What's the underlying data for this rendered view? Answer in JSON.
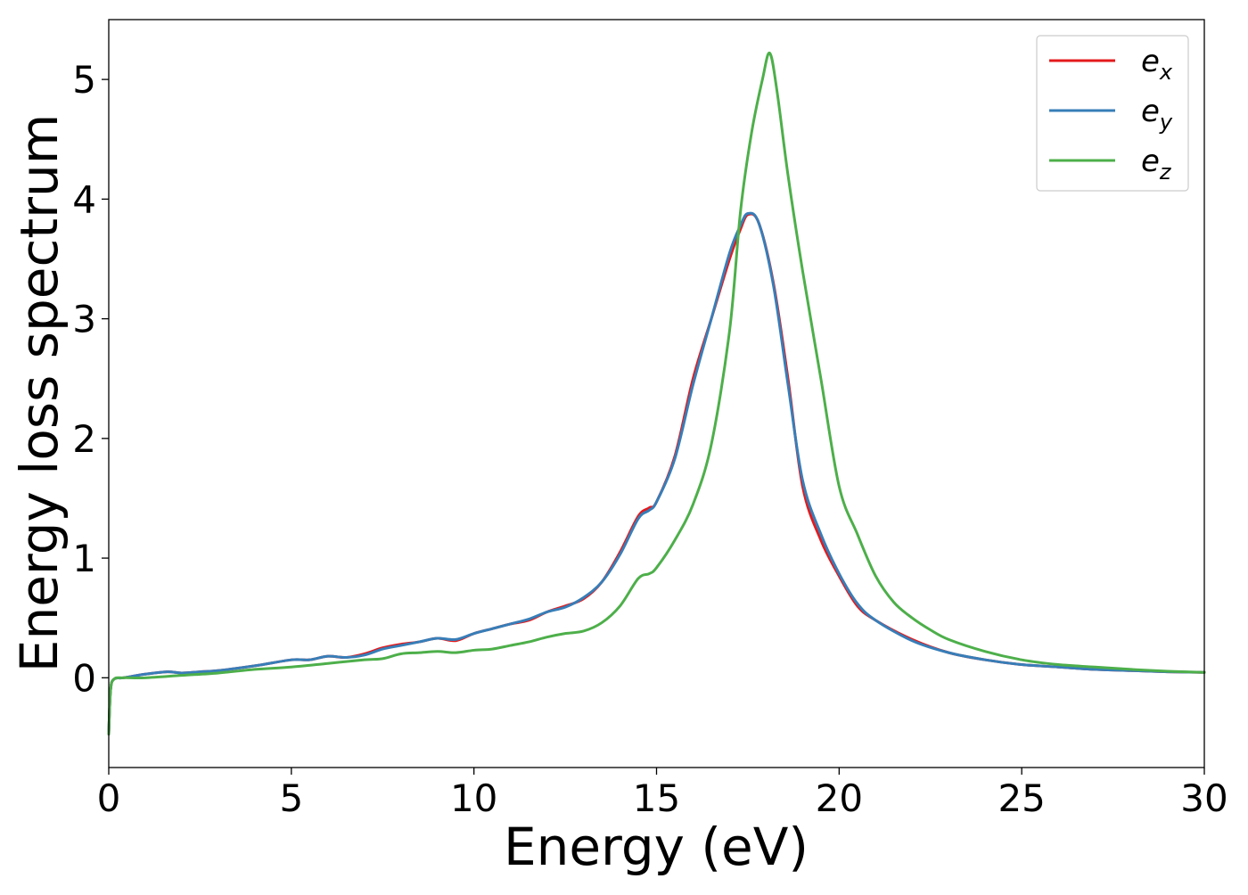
{
  "chart_data": {
    "type": "line",
    "title": "",
    "xlabel": "Energy (eV)",
    "ylabel": "Energy loss spectrum",
    "xlim": [
      0,
      30
    ],
    "ylim": [
      -0.75,
      5.5
    ],
    "xticks": [
      0,
      5,
      10,
      15,
      20,
      25,
      30
    ],
    "yticks": [
      0,
      1,
      2,
      3,
      4,
      5
    ],
    "xtick_labels": [
      "0",
      "5",
      "10",
      "15",
      "20",
      "25",
      "30"
    ],
    "ytick_labels": [
      "0",
      "1",
      "2",
      "3",
      "4",
      "5"
    ],
    "grid": false,
    "legend_position": "top-right",
    "series": [
      {
        "name": "e_x",
        "label_main": "e",
        "label_sub": "x",
        "color": "#e41a1c",
        "x": [
          0,
          0.05,
          0.15,
          0.4,
          1.0,
          1.6,
          2.0,
          2.5,
          3.0,
          4.0,
          5.0,
          5.5,
          6.0,
          6.5,
          7.0,
          7.5,
          8.0,
          8.5,
          9.0,
          9.5,
          10.0,
          10.5,
          11.0,
          11.5,
          12.0,
          12.5,
          13.0,
          13.5,
          14.0,
          14.5,
          14.8,
          15.0,
          15.5,
          16.0,
          16.5,
          17.0,
          17.3,
          17.5,
          17.8,
          18.2,
          18.6,
          19.0,
          19.5,
          20.0,
          20.5,
          21.0,
          22.0,
          23.0,
          24.0,
          25.0,
          26.0,
          27.0,
          28.0,
          29.0,
          30.0
        ],
        "y": [
          -0.47,
          -0.1,
          -0.01,
          0.0,
          0.03,
          0.05,
          0.04,
          0.05,
          0.06,
          0.1,
          0.15,
          0.15,
          0.18,
          0.17,
          0.2,
          0.25,
          0.28,
          0.3,
          0.33,
          0.31,
          0.37,
          0.41,
          0.45,
          0.48,
          0.55,
          0.6,
          0.66,
          0.8,
          1.05,
          1.35,
          1.42,
          1.47,
          1.85,
          2.5,
          3.0,
          3.5,
          3.75,
          3.87,
          3.8,
          3.3,
          2.5,
          1.6,
          1.15,
          0.85,
          0.6,
          0.48,
          0.32,
          0.21,
          0.15,
          0.11,
          0.09,
          0.07,
          0.06,
          0.05,
          0.045
        ]
      },
      {
        "name": "e_y",
        "label_main": "e",
        "label_sub": "y",
        "color": "#377eb8",
        "x": [
          0,
          0.05,
          0.15,
          0.4,
          1.0,
          1.6,
          2.0,
          2.5,
          3.0,
          4.0,
          5.0,
          5.5,
          6.0,
          6.5,
          7.0,
          7.5,
          8.0,
          8.5,
          9.0,
          9.5,
          10.0,
          10.5,
          11.0,
          11.5,
          12.0,
          12.5,
          13.0,
          13.5,
          14.0,
          14.5,
          14.8,
          15.0,
          15.5,
          16.0,
          16.5,
          17.0,
          17.3,
          17.5,
          17.8,
          18.2,
          18.6,
          19.0,
          19.5,
          20.0,
          20.5,
          21.0,
          22.0,
          23.0,
          24.0,
          25.0,
          26.0,
          27.0,
          28.0,
          29.0,
          30.0
        ],
        "y": [
          -0.47,
          -0.1,
          -0.01,
          0.0,
          0.03,
          0.05,
          0.04,
          0.05,
          0.06,
          0.1,
          0.15,
          0.15,
          0.18,
          0.17,
          0.19,
          0.24,
          0.27,
          0.3,
          0.33,
          0.32,
          0.37,
          0.41,
          0.45,
          0.49,
          0.55,
          0.59,
          0.67,
          0.8,
          1.03,
          1.33,
          1.4,
          1.47,
          1.83,
          2.45,
          3.0,
          3.55,
          3.78,
          3.88,
          3.8,
          3.28,
          2.45,
          1.65,
          1.2,
          0.87,
          0.62,
          0.48,
          0.31,
          0.21,
          0.15,
          0.11,
          0.09,
          0.07,
          0.06,
          0.05,
          0.045
        ]
      },
      {
        "name": "e_z",
        "label_main": "e",
        "label_sub": "z",
        "color": "#4daf4a",
        "x": [
          0,
          0.05,
          0.15,
          0.4,
          1.0,
          2.0,
          3.0,
          4.0,
          5.0,
          6.0,
          7.0,
          7.5,
          8.0,
          8.5,
          9.0,
          9.5,
          10.0,
          10.5,
          11.0,
          11.5,
          12.0,
          12.5,
          13.0,
          13.5,
          14.0,
          14.5,
          14.8,
          15.0,
          15.5,
          16.0,
          16.5,
          17.0,
          17.3,
          17.6,
          17.9,
          18.1,
          18.3,
          18.6,
          19.0,
          19.5,
          20.0,
          20.5,
          21.0,
          21.5,
          22.0,
          22.5,
          23.0,
          24.0,
          25.0,
          26.0,
          27.0,
          28.0,
          29.0,
          30.0
        ],
        "y": [
          -0.47,
          -0.1,
          -0.01,
          0.0,
          0.0,
          0.02,
          0.04,
          0.07,
          0.09,
          0.12,
          0.15,
          0.16,
          0.2,
          0.21,
          0.22,
          0.21,
          0.23,
          0.24,
          0.27,
          0.3,
          0.34,
          0.37,
          0.39,
          0.46,
          0.6,
          0.83,
          0.87,
          0.92,
          1.15,
          1.45,
          1.95,
          2.9,
          3.9,
          4.55,
          5.0,
          5.22,
          4.9,
          4.2,
          3.4,
          2.5,
          1.6,
          1.2,
          0.85,
          0.63,
          0.5,
          0.4,
          0.32,
          0.22,
          0.15,
          0.11,
          0.09,
          0.07,
          0.055,
          0.045
        ]
      }
    ]
  }
}
